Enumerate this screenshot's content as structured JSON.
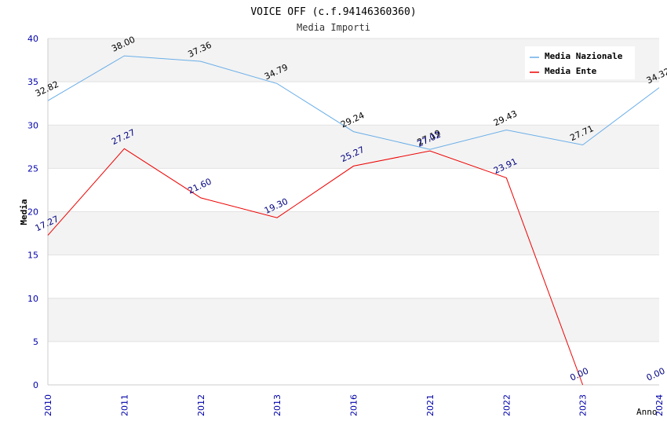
{
  "chart_data": {
    "type": "line",
    "title": "VOICE OFF (c.f.94146360360)",
    "subtitle": "Media Importi",
    "xlabel": "Anno",
    "ylabel": "Media",
    "ylim": [
      0,
      40
    ],
    "yticks": [
      0,
      5,
      10,
      15,
      20,
      25,
      30,
      35,
      40
    ],
    "categories": [
      "2010",
      "2011",
      "2012",
      "2013",
      "2016",
      "2021",
      "2022",
      "2023",
      "2024"
    ],
    "legend_position": "top-right",
    "grid": true,
    "series": [
      {
        "name": "Media Nazionale",
        "color": "#6aaee8",
        "label_color": "#000000",
        "values": [
          32.82,
          38.0,
          37.36,
          34.79,
          29.24,
          27.19,
          29.43,
          27.71,
          34.32
        ],
        "labels": [
          "32.82",
          "38.00",
          "37.36",
          "34.79",
          "29.24",
          "27.19",
          "29.43",
          "27.71",
          "34.32"
        ]
      },
      {
        "name": "Media Ente",
        "color": "#ee0000",
        "label_color": "#000080",
        "values": [
          17.27,
          27.27,
          21.6,
          19.3,
          25.27,
          27.02,
          23.91,
          0.0,
          null
        ],
        "labels": [
          "17.27",
          "27.27",
          "21.60",
          "19.30",
          "25.27",
          "27.02",
          "23.91",
          "0.00",
          "0.00"
        ]
      }
    ]
  }
}
